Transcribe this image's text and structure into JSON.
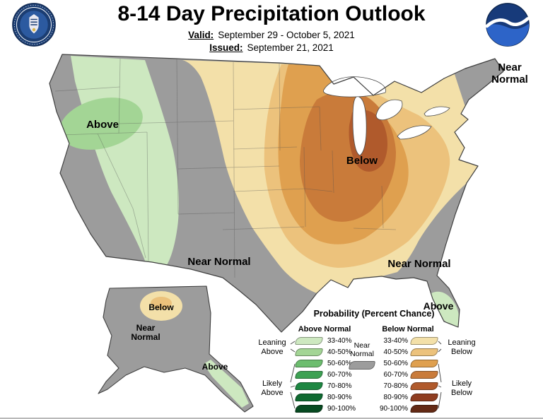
{
  "header": {
    "title": "8-14 Day Precipitation Outlook",
    "valid_label": "Valid:",
    "valid_value": "September 29 - October 5, 2021",
    "issued_label": "Issued:",
    "issued_value": "September 21, 2021"
  },
  "map": {
    "labels": {
      "west": "Above",
      "midwest": "Below",
      "south_central": "Near Normal",
      "southeast": "Near Normal",
      "northeast": "Near Normal",
      "florida": "Above",
      "alaska_below": "Below",
      "alaska_near_normal": "Near Normal",
      "alaska_panhandle": "Above"
    }
  },
  "legend": {
    "title": "Probability (Percent Chance)",
    "above_header": "Above Normal",
    "below_header": "Below Normal",
    "near_normal_label": "Near Normal",
    "near_normal_color": "#9c9c9c",
    "leaning_above": "Leaning Above",
    "likely_above": "Likely Above",
    "leaning_below": "Leaning Below",
    "likely_below": "Likely Below",
    "rows": [
      {
        "range": "33-40%",
        "above_color": "#cde8c0",
        "below_color": "#f3e0a9"
      },
      {
        "range": "40-50%",
        "above_color": "#a3d595",
        "below_color": "#ecc27c"
      },
      {
        "range": "50-60%",
        "above_color": "#6cbd6e",
        "below_color": "#dfa04f"
      },
      {
        "range": "60-70%",
        "above_color": "#3da153",
        "below_color": "#c97b3a"
      },
      {
        "range": "70-80%",
        "above_color": "#1e8742",
        "below_color": "#b05a2c"
      },
      {
        "range": "80-90%",
        "above_color": "#0f6a31",
        "below_color": "#8f3d20"
      },
      {
        "range": "90-100%",
        "above_color": "#074a21",
        "below_color": "#642a15"
      }
    ]
  }
}
